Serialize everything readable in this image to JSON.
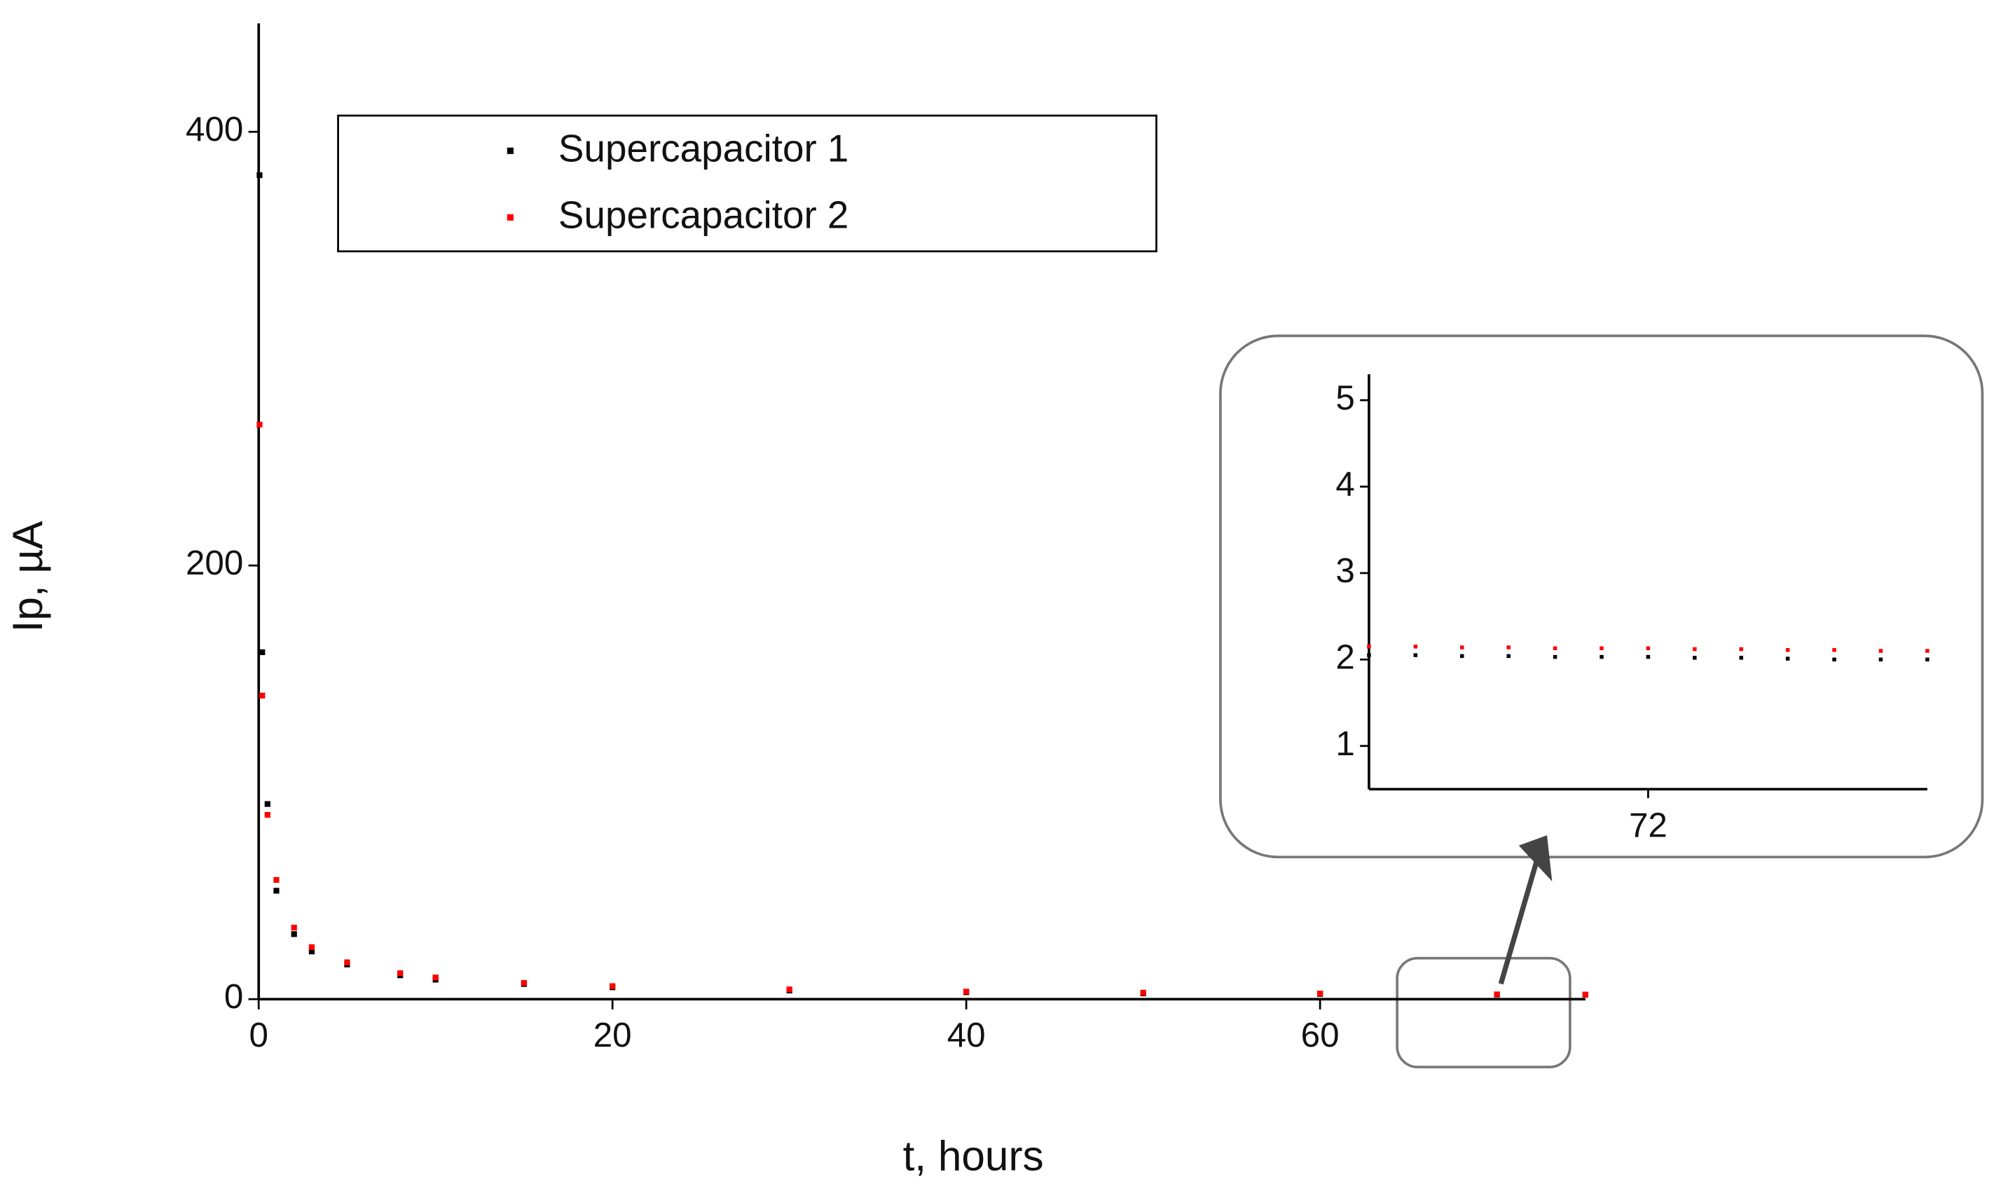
{
  "chart_data": [
    {
      "type": "scatter",
      "x_label": "t, hours",
      "y_label": "Ip, µA",
      "xlim": [
        0,
        75
      ],
      "xticks": [
        0,
        20,
        40,
        60
      ],
      "ylim": [
        0,
        450
      ],
      "yticks": [
        0,
        200,
        400
      ],
      "series": [
        {
          "name": "Supercapacitor 1",
          "color": "#000000",
          "x": [
            0.05,
            0.2,
            0.5,
            1,
            2,
            3,
            5,
            8,
            10,
            15,
            20,
            30,
            40,
            50,
            60,
            70,
            75
          ],
          "values": [
            380,
            160,
            90,
            50,
            30,
            22,
            16,
            11,
            9,
            7,
            5.5,
            4,
            3.2,
            2.7,
            2.4,
            2.1,
            2.05
          ]
        },
        {
          "name": "Supercapacitor 2",
          "color": "#ff0000",
          "x": [
            0.05,
            0.2,
            0.5,
            1,
            2,
            3,
            5,
            8,
            10,
            15,
            20,
            30,
            40,
            50,
            60,
            70,
            75
          ],
          "values": [
            265,
            140,
            85,
            55,
            33,
            24,
            17,
            12,
            10,
            7.5,
            6,
            4.5,
            3.5,
            3,
            2.6,
            2.2,
            2.1
          ]
        }
      ]
    },
    {
      "type": "scatter",
      "xlim": [
        69,
        75
      ],
      "xticks": [
        72
      ],
      "ylim": [
        0.5,
        5.3
      ],
      "yticks": [
        1,
        2,
        3,
        4,
        5
      ],
      "series": [
        {
          "color": "#000000",
          "x": [
            69,
            69.5,
            70,
            70.5,
            71,
            71.5,
            72,
            72.5,
            73,
            73.5,
            74,
            74.5,
            75
          ],
          "values": [
            2.05,
            2.05,
            2.04,
            2.04,
            2.03,
            2.03,
            2.03,
            2.02,
            2.02,
            2.01,
            2.0,
            2.0,
            2.0
          ]
        },
        {
          "color": "#ff0000",
          "x": [
            69,
            69.5,
            70,
            70.5,
            71,
            71.5,
            72,
            72.5,
            73,
            73.5,
            74,
            74.5,
            75
          ],
          "values": [
            2.15,
            2.15,
            2.14,
            2.14,
            2.13,
            2.13,
            2.13,
            2.12,
            2.12,
            2.11,
            2.11,
            2.1,
            2.1
          ]
        }
      ]
    }
  ]
}
